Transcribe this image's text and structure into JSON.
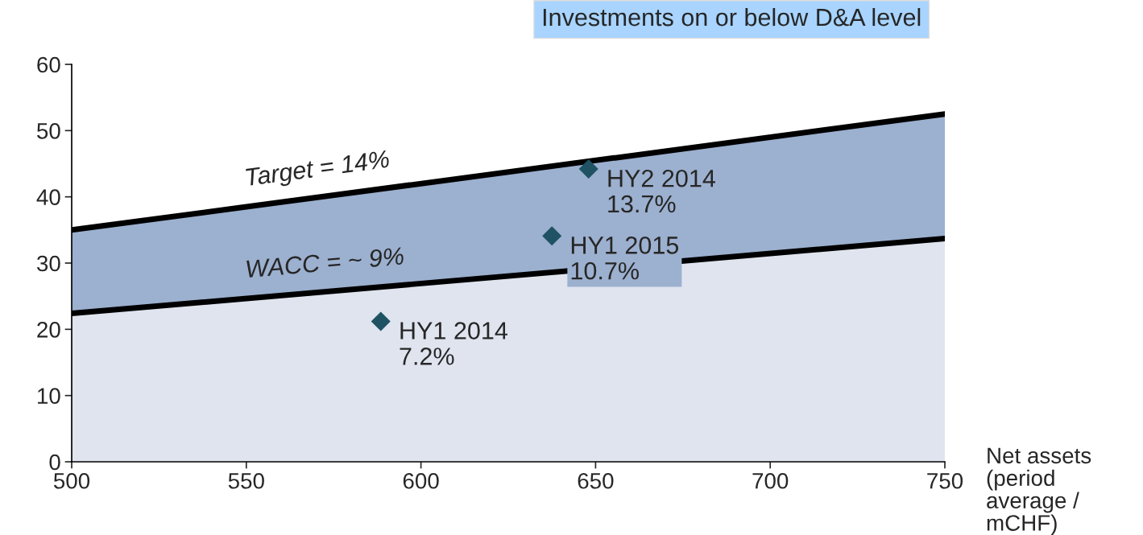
{
  "chart_data": {
    "type": "area",
    "xlabel": "Net assets (period average / mCHF)",
    "x": [
      500,
      750
    ],
    "series": [
      {
        "name": "WACC = ~ 9%",
        "color": "#dfe4ef",
        "values": [
          22.4,
          33.7
        ]
      },
      {
        "name": "Target = 14%",
        "color": "#9cb0cf",
        "values": [
          35,
          52.5
        ]
      },
      {
        "type": "scatter",
        "color": "#1f5263",
        "marker": "diamond",
        "x": [
          588.5,
          637.5,
          648
        ],
        "values": [
          21.2,
          34.1,
          44.2
        ]
      }
    ],
    "annotations": [
      {
        "text": "HY1 2014\n7.2%",
        "x": 588.5,
        "y": 21.2
      },
      {
        "text": "HY1 2015\n10.7%",
        "x": 637.5,
        "y": 34.1
      },
      {
        "text": "HY2 2014\n13.7%",
        "x": 648,
        "y": 44.2
      },
      "Investments on or below D&A level"
    ],
    "xlim": [
      500,
      750
    ],
    "xticks": [
      500,
      550,
      600,
      650,
      700,
      750
    ],
    "ylim": [
      0,
      60
    ],
    "yticks": [
      0,
      10,
      20,
      30,
      40,
      50,
      60
    ],
    "grid": false,
    "legend": false
  }
}
